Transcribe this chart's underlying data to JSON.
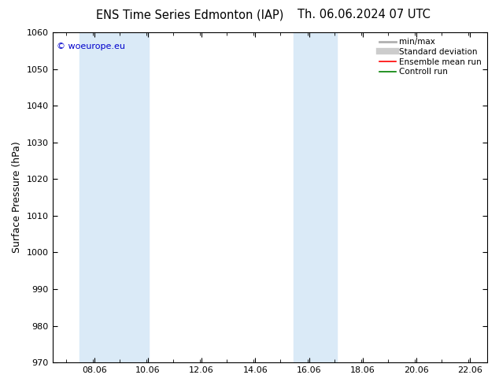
{
  "title_left": "ENS Time Series Edmonton (IAP)",
  "title_right": "Th. 06.06.2024 07 UTC",
  "ylabel": "Surface Pressure (hPa)",
  "ylim": [
    970,
    1060
  ],
  "yticks": [
    970,
    980,
    990,
    1000,
    1010,
    1020,
    1030,
    1040,
    1050,
    1060
  ],
  "xlim_start": 6.5,
  "xlim_end": 22.7,
  "xticks": [
    8.06,
    10.06,
    12.06,
    14.06,
    16.06,
    18.06,
    20.06,
    22.06
  ],
  "xticklabels": [
    "08.06",
    "10.06",
    "12.06",
    "14.06",
    "16.06",
    "18.06",
    "20.06",
    "22.06"
  ],
  "band1_xmin": 7.5,
  "band1_xmax": 10.1,
  "band2_xmin": 15.5,
  "band2_xmax": 16.5,
  "band3_xmin": 16.5,
  "band3_xmax": 17.1,
  "band_color": "#daeaf7",
  "watermark": "© woeurope.eu",
  "watermark_color": "#0000cc",
  "background_color": "#ffffff",
  "plot_bg_color": "#ffffff",
  "legend_items": [
    {
      "label": "min/max",
      "color": "#b0b0b0",
      "lw": 2.0
    },
    {
      "label": "Standard deviation",
      "color": "#cccccc",
      "lw": 6
    },
    {
      "label": "Ensemble mean run",
      "color": "#ff0000",
      "lw": 1.2
    },
    {
      "label": "Controll run",
      "color": "#008000",
      "lw": 1.2
    }
  ],
  "title_fontsize": 10.5,
  "tick_fontsize": 8,
  "ylabel_fontsize": 9,
  "watermark_fontsize": 8,
  "legend_fontsize": 7.5
}
